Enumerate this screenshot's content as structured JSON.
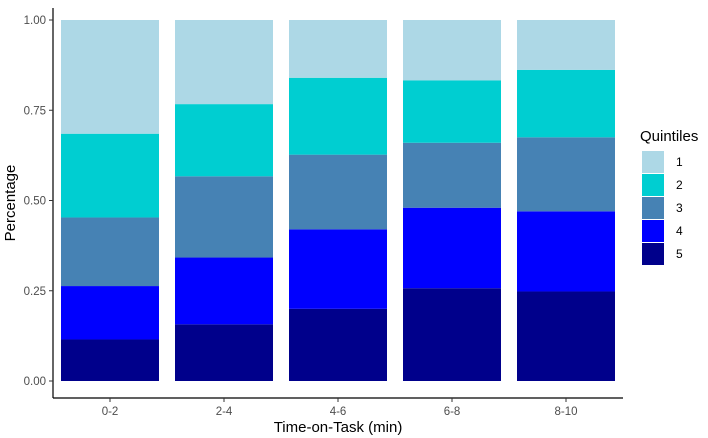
{
  "chart_data": {
    "type": "bar",
    "stacked": true,
    "title": "",
    "xlabel": "Time-on-Task (min)",
    "ylabel": "Percentage",
    "categories": [
      "0-2",
      "2-4",
      "4-6",
      "6-8",
      "8-10"
    ],
    "ylim": [
      0,
      1
    ],
    "yticks": [
      "0.00",
      "0.25",
      "0.50",
      "0.75",
      "1.00"
    ],
    "grid": false,
    "legend": {
      "title": "Quintiles",
      "position": "right"
    },
    "series": [
      {
        "name": "5",
        "color": "#00008b",
        "values": [
          0.115,
          0.157,
          0.2,
          0.257,
          0.248
        ]
      },
      {
        "name": "4",
        "color": "#0000ff",
        "values": [
          0.148,
          0.185,
          0.22,
          0.223,
          0.222
        ]
      },
      {
        "name": "3",
        "color": "#4682b4",
        "values": [
          0.19,
          0.225,
          0.207,
          0.18,
          0.205
        ]
      },
      {
        "name": "2",
        "color": "#00ced1",
        "values": [
          0.232,
          0.2,
          0.213,
          0.173,
          0.187
        ]
      },
      {
        "name": "1",
        "color": "#add8e6",
        "values": [
          0.315,
          0.233,
          0.16,
          0.167,
          0.138
        ]
      }
    ],
    "legend_order": [
      "1",
      "2",
      "3",
      "4",
      "5"
    ]
  }
}
